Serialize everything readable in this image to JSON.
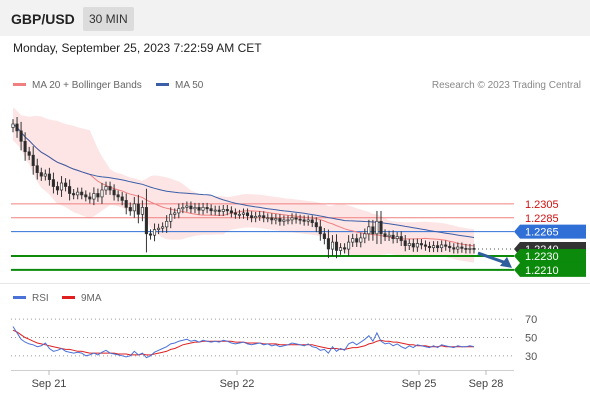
{
  "header": {
    "pair": "GBP/USD",
    "timeframe": "30 MIN",
    "datetime": "Monday, September 25, 2023 7:22:59 AM CET"
  },
  "legend": {
    "ma20_label": "MA 20 + Bollinger Bands",
    "ma50_label": "MA 50",
    "credit": "Research © 2023 Trading Central",
    "rsi_label": "RSI",
    "ma9_label": "9MA"
  },
  "colors": {
    "ma20": "#f08080",
    "ma50": "#3a5fa8",
    "bands_fill": "#fde0e0",
    "resistance": "#f08080",
    "pivot": "#2f6fd6",
    "support": "#0b8a0b",
    "rsi": "#4a72d8",
    "rsi_ma": "#e02020",
    "arrow": "#2f5e9e"
  },
  "chart_data": [
    {
      "type": "candlestick",
      "title": "GBP/USD",
      "x_labels": [
        "Sep 21",
        "Sep 22",
        "Sep 25",
        "Sep 28"
      ],
      "ylim": [
        1.22,
        1.244
      ],
      "grid": false,
      "legend_position": "top-left",
      "levels": [
        {
          "label": "1.2305",
          "value": 1.2305,
          "role": "resistance"
        },
        {
          "label": "1.2285",
          "value": 1.2285,
          "role": "resistance"
        },
        {
          "label": "1.2265",
          "value": 1.2265,
          "role": "pivot"
        },
        {
          "label": "1.2240",
          "value": 1.224,
          "role": "last"
        },
        {
          "label": "1.2230",
          "value": 1.223,
          "role": "support"
        },
        {
          "label": "1.2210",
          "value": 1.221,
          "role": "support"
        }
      ],
      "close": [
        1.242,
        1.241,
        1.2395,
        1.238,
        1.2375,
        1.236,
        1.235,
        1.2345,
        1.2348,
        1.234,
        1.233,
        1.2325,
        1.2335,
        1.233,
        1.232,
        1.2318,
        1.2322,
        1.2318,
        1.2315,
        1.2312,
        1.232,
        1.2315,
        1.2325,
        1.233,
        1.2325,
        1.2318,
        1.2315,
        1.231,
        1.23,
        1.2295,
        1.2305,
        1.229,
        1.23,
        1.2262,
        1.226,
        1.2268,
        1.227,
        1.2272,
        1.228,
        1.229,
        1.2292,
        1.2298,
        1.23,
        1.2302,
        1.2298,
        1.23,
        1.2296,
        1.23,
        1.2298,
        1.2295,
        1.2296,
        1.2294,
        1.2297,
        1.2295,
        1.2292,
        1.229,
        1.229,
        1.2292,
        1.2288,
        1.2285,
        1.2287,
        1.2288,
        1.2285,
        1.2285,
        1.2282,
        1.2284,
        1.228,
        1.2282,
        1.2282,
        1.2285,
        1.2283,
        1.2282,
        1.228,
        1.2282,
        1.2278,
        1.2272,
        1.2262,
        1.2255,
        1.224,
        1.225,
        1.2238,
        1.2242,
        1.224,
        1.225,
        1.2255,
        1.225,
        1.2256,
        1.2262,
        1.2272,
        1.2262,
        1.228,
        1.2262,
        1.2258,
        1.226,
        1.2255,
        1.2258,
        1.2252,
        1.2245,
        1.2248,
        1.2243,
        1.2248,
        1.2246,
        1.2244,
        1.2242,
        1.2245,
        1.2242,
        1.2246,
        1.2244,
        1.2242,
        1.224,
        1.2243,
        1.2241,
        1.224,
        1.2241,
        1.224
      ],
      "forecast_target": 1.221
    },
    {
      "type": "line",
      "title": "RSI",
      "ylim": [
        20,
        80
      ],
      "y_ticks": [
        30,
        50,
        70
      ],
      "x_labels": [
        "Sep 21",
        "Sep 22",
        "Sep 25",
        "Sep 28"
      ],
      "series": [
        {
          "name": "RSI",
          "values": [
            62,
            55,
            48,
            45,
            43,
            42,
            40,
            41,
            44,
            38,
            35,
            36,
            38,
            35,
            34,
            33,
            34,
            33,
            30,
            31,
            33,
            31,
            34,
            36,
            33,
            32,
            31,
            30,
            29,
            30,
            35,
            31,
            33,
            28,
            30,
            34,
            36,
            38,
            40,
            43,
            44,
            46,
            47,
            48,
            46,
            47,
            45,
            47,
            46,
            45,
            46,
            45,
            47,
            46,
            44,
            43,
            44,
            45,
            43,
            42,
            43,
            44,
            42,
            43,
            41,
            42,
            40,
            41,
            42,
            44,
            43,
            42,
            41,
            43,
            40,
            39,
            36,
            37,
            33,
            40,
            35,
            38,
            36,
            43,
            45,
            42,
            45,
            48,
            52,
            46,
            55,
            46,
            43,
            44,
            41,
            43,
            40,
            38,
            41,
            39,
            42,
            41,
            40,
            39,
            41,
            39,
            42,
            41,
            40,
            39,
            41,
            40,
            40,
            41,
            40
          ]
        },
        {
          "name": "9MA",
          "values": [
            58,
            56,
            53,
            50,
            48,
            46,
            44,
            43,
            42,
            41,
            40,
            39,
            38,
            37,
            37,
            36,
            35,
            35,
            34,
            33,
            33,
            33,
            33,
            33,
            33,
            33,
            32,
            32,
            32,
            31,
            31,
            31,
            32,
            31,
            31,
            32,
            33,
            34,
            35,
            37,
            38,
            40,
            42,
            43,
            44,
            45,
            45,
            46,
            46,
            46,
            46,
            46,
            46,
            46,
            46,
            45,
            45,
            45,
            44,
            44,
            44,
            44,
            43,
            43,
            43,
            43,
            42,
            42,
            42,
            42,
            42,
            42,
            42,
            42,
            42,
            41,
            40,
            39,
            38,
            38,
            38,
            37,
            37,
            38,
            39,
            39,
            40,
            41,
            43,
            44,
            46,
            47,
            46,
            46,
            45,
            45,
            44,
            43,
            42,
            42,
            41,
            41,
            41,
            40,
            40,
            40,
            41,
            40,
            40,
            40,
            40,
            40,
            40,
            40,
            40
          ]
        }
      ]
    }
  ]
}
